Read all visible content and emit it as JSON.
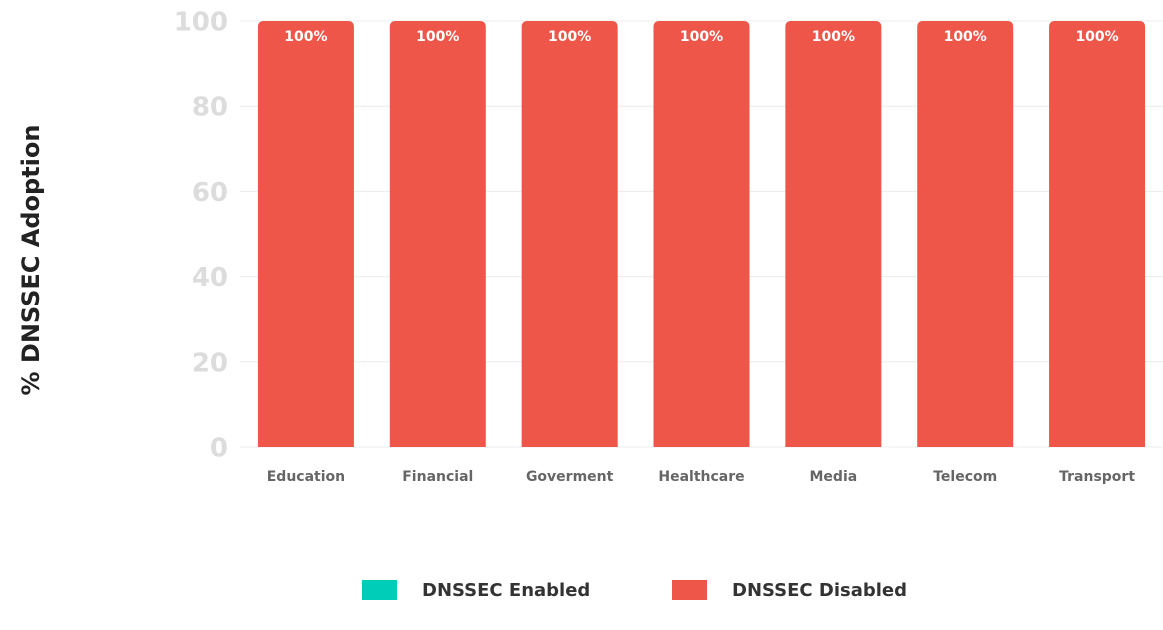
{
  "chart_data": {
    "type": "stacked_bar",
    "y_axis_label": "% DNSSEC Adoption",
    "categories": [
      "Education",
      "Financial",
      "Goverment",
      "Healthcare",
      "Media",
      "Telecom",
      "Transport"
    ],
    "series": [
      {
        "name": "DNSSEC Enabled",
        "color": "#00cdb8",
        "values": [
          0,
          0,
          0,
          0,
          0,
          0,
          0
        ]
      },
      {
        "name": "DNSSEC Disabled",
        "color": "#ee564a",
        "values": [
          100,
          100,
          100,
          100,
          100,
          100,
          100
        ],
        "value_labels": [
          "100%",
          "100%",
          "100%",
          "100%",
          "100%",
          "100%",
          "100%"
        ]
      }
    ],
    "ylim": [
      0,
      100
    ],
    "yticks": [
      0,
      20,
      40,
      60,
      80,
      100
    ],
    "grid": true,
    "legend": "bottom"
  }
}
